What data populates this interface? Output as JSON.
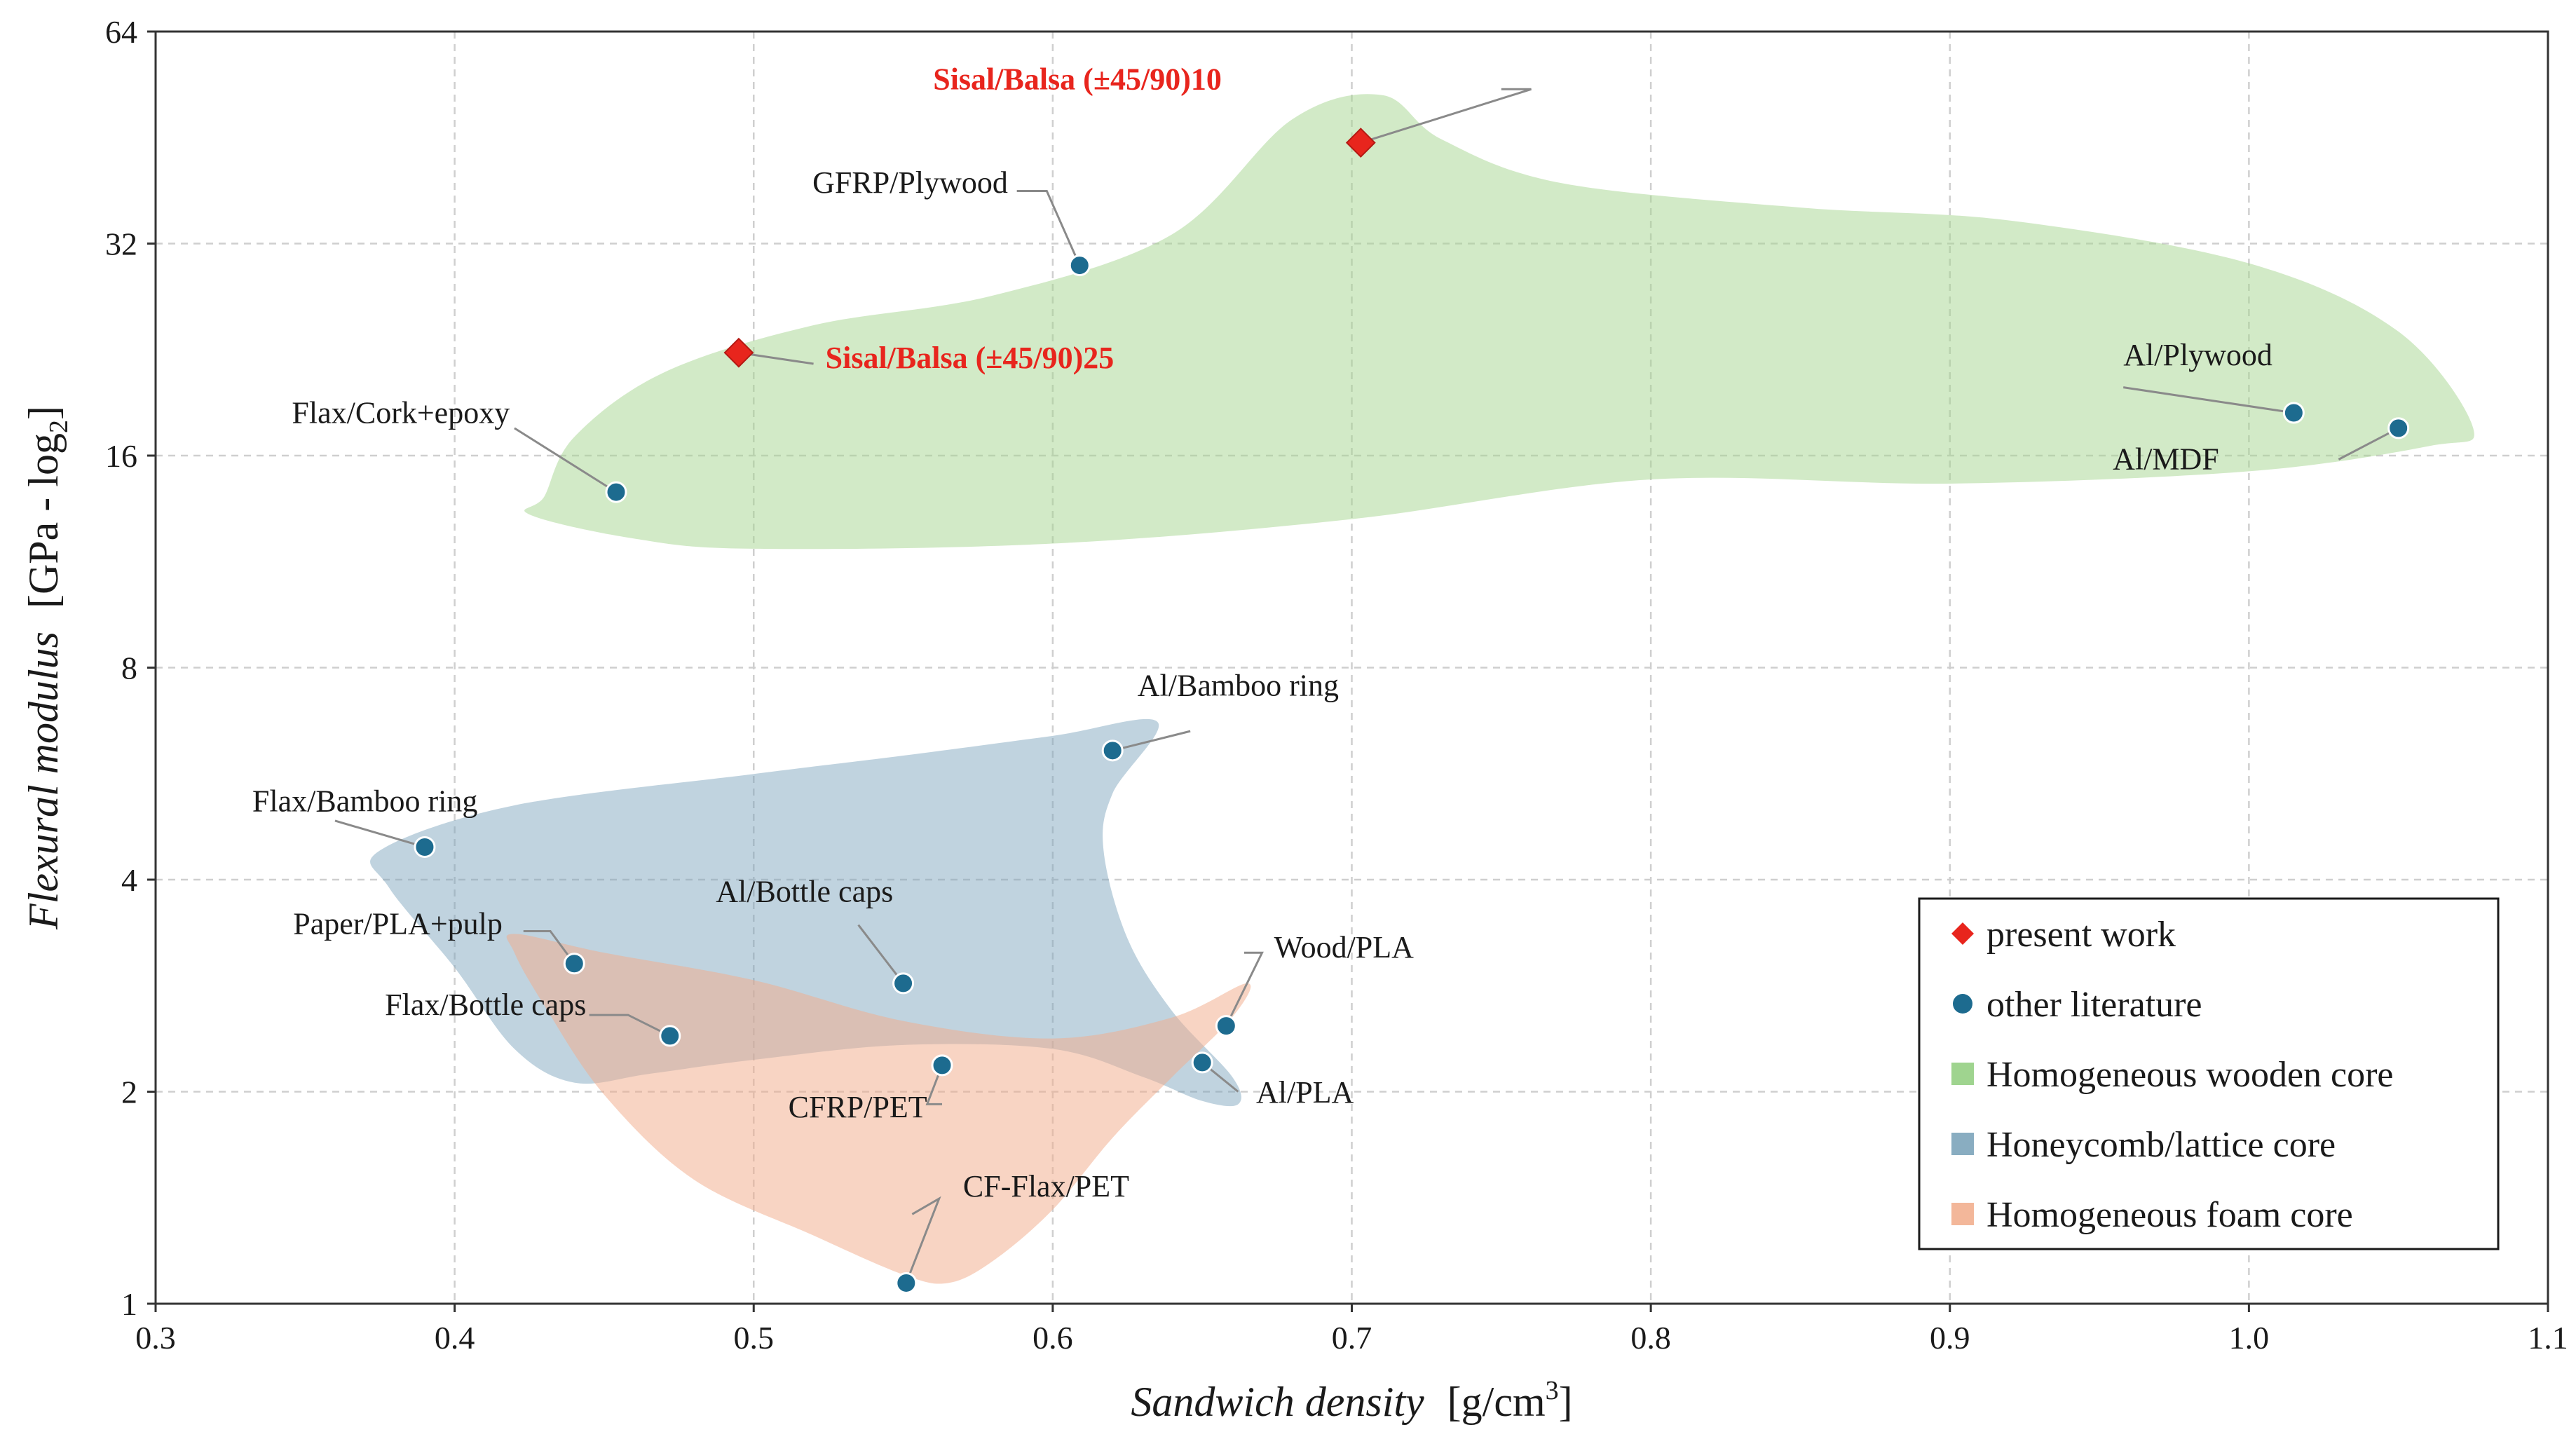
{
  "chart_data": {
    "type": "scatter",
    "title": "",
    "xlabel": "Sandwich density",
    "xlabel_unit": "[g/cm",
    "xlabel_unit_sup": "3",
    "xlabel_unit_close": "]",
    "ylabel": "Flexural modulus",
    "ylabel_unit": "[GPa - log",
    "ylabel_unit_sub": "2",
    "ylabel_unit_close": "]",
    "xlim": [
      0.3,
      1.1
    ],
    "ylim": [
      1,
      64
    ],
    "yscale": "log2",
    "x_ticks": [
      "0.3",
      "0.4",
      "0.5",
      "0.6",
      "0.7",
      "0.8",
      "0.9",
      "1.0",
      "1.1"
    ],
    "y_ticks": [
      "1",
      "2",
      "4",
      "8",
      "16",
      "32",
      "64"
    ],
    "grid": true,
    "legend_position": "bottom-right",
    "legend": [
      {
        "label": "present work",
        "marker": "diamond",
        "color": "#e8251d"
      },
      {
        "label": "other literature",
        "marker": "circle",
        "color": "#1d6b8f"
      },
      {
        "label": "Homogeneous wooden core",
        "marker": "square",
        "color": "#9fd48f"
      },
      {
        "label": "Honeycomb/lattice core",
        "marker": "square",
        "color": "#89adc1"
      },
      {
        "label": "Homogeneous foam core",
        "marker": "square",
        "color": "#f3b79a"
      }
    ],
    "regions": [
      {
        "name": "Homogeneous wooden core",
        "color": "#a6d690",
        "opacity": 0.5,
        "outline": [
          [
            0.43,
            14
          ],
          [
            0.44,
            17
          ],
          [
            0.47,
            21
          ],
          [
            0.52,
            24.5
          ],
          [
            0.58,
            27
          ],
          [
            0.64,
            33
          ],
          [
            0.68,
            48
          ],
          [
            0.71,
            52
          ],
          [
            0.73,
            45
          ],
          [
            0.77,
            39
          ],
          [
            0.85,
            36
          ],
          [
            0.92,
            34.5
          ],
          [
            1.0,
            30
          ],
          [
            1.05,
            24
          ],
          [
            1.075,
            17.5
          ],
          [
            1.06,
            16.5
          ],
          [
            1.0,
            15.2
          ],
          [
            0.9,
            14.6
          ],
          [
            0.8,
            14.8
          ],
          [
            0.7,
            13
          ],
          [
            0.6,
            12
          ],
          [
            0.5,
            11.8
          ],
          [
            0.46,
            12.2
          ],
          [
            0.425,
            13.2
          ]
        ]
      },
      {
        "name": "Honeycomb/lattice core",
        "color": "#7ba3bd",
        "opacity": 0.48,
        "outline": [
          [
            0.375,
            4.4
          ],
          [
            0.42,
            5.1
          ],
          [
            0.5,
            5.65
          ],
          [
            0.55,
            6.0
          ],
          [
            0.6,
            6.4
          ],
          [
            0.635,
            6.7
          ],
          [
            0.62,
            5.3
          ],
          [
            0.617,
            4.4
          ],
          [
            0.625,
            3.3
          ],
          [
            0.64,
            2.6
          ],
          [
            0.66,
            2.1
          ],
          [
            0.662,
            1.92
          ],
          [
            0.65,
            1.94
          ],
          [
            0.63,
            2.1
          ],
          [
            0.6,
            2.3
          ],
          [
            0.55,
            2.33
          ],
          [
            0.5,
            2.22
          ],
          [
            0.465,
            2.12
          ],
          [
            0.44,
            2.06
          ],
          [
            0.42,
            2.3
          ],
          [
            0.4,
            3.0
          ],
          [
            0.378,
            3.9
          ]
        ]
      },
      {
        "name": "Homogeneous foam core",
        "color": "#f1ad8c",
        "opacity": 0.52,
        "outline": [
          [
            0.42,
            3.35
          ],
          [
            0.45,
            3.15
          ],
          [
            0.5,
            2.88
          ],
          [
            0.55,
            2.52
          ],
          [
            0.6,
            2.38
          ],
          [
            0.64,
            2.55
          ],
          [
            0.665,
            2.85
          ],
          [
            0.66,
            2.55
          ],
          [
            0.64,
            2.1
          ],
          [
            0.62,
            1.72
          ],
          [
            0.6,
            1.36
          ],
          [
            0.58,
            1.15
          ],
          [
            0.565,
            1.07
          ],
          [
            0.55,
            1.1
          ],
          [
            0.52,
            1.25
          ],
          [
            0.48,
            1.5
          ],
          [
            0.45,
            1.98
          ],
          [
            0.43,
            2.65
          ],
          [
            0.42,
            3.15
          ]
        ]
      }
    ],
    "points": [
      {
        "label": "Sisal/Balsa (±45/90)10",
        "x": 0.703,
        "y": 44.5,
        "marker": "diamond",
        "group": "present work",
        "label_pos": [
          0.56,
          53
        ],
        "leader": [
          [
            0.75,
            53
          ],
          [
            0.76,
            53
          ]
        ],
        "anchor": "start"
      },
      {
        "label": "Sisal/Balsa (±45/90)25",
        "x": 0.495,
        "y": 22.4,
        "marker": "diamond",
        "group": "present work",
        "label_pos": [
          0.524,
          21.3
        ],
        "leader": [
          [
            0.52,
            21.6
          ]
        ],
        "anchor": "start"
      },
      {
        "label": "GFRP/Plywood",
        "x": 0.609,
        "y": 29.8,
        "marker": "circle",
        "group": "other literature",
        "label_pos": [
          0.585,
          37.8
        ],
        "leader": [
          [
            0.588,
            38
          ],
          [
            0.598,
            38
          ]
        ],
        "anchor": "end"
      },
      {
        "label": "Al/Plywood",
        "x": 1.015,
        "y": 18.4,
        "marker": "circle",
        "group": "other literature",
        "label_pos": [
          0.958,
          21.5
        ],
        "leader": [
          [
            0.958,
            20
          ]
        ],
        "anchor": "start"
      },
      {
        "label": "Al/MDF",
        "x": 1.05,
        "y": 17.5,
        "marker": "circle",
        "group": "other literature",
        "label_pos": [
          0.99,
          15.3
        ],
        "leader": [
          [
            1.03,
            15.8
          ]
        ],
        "anchor": "end"
      },
      {
        "label": "Flax/Cork+epoxy",
        "x": 0.454,
        "y": 14.2,
        "marker": "circle",
        "group": "other literature",
        "label_pos": [
          0.382,
          17.8
        ],
        "leader": [
          [
            0.42,
            17.5
          ]
        ],
        "anchor": "middle"
      },
      {
        "label": "Al/Bamboo ring",
        "x": 0.62,
        "y": 6.1,
        "marker": "circle",
        "group": "other literature",
        "label_pos": [
          0.662,
          7.3
        ],
        "leader": [
          [
            0.646,
            6.5
          ]
        ],
        "anchor": "middle"
      },
      {
        "label": "Flax/Bamboo ring",
        "x": 0.39,
        "y": 4.45,
        "marker": "circle",
        "group": "other literature",
        "label_pos": [
          0.37,
          5.0
        ],
        "leader": [
          [
            0.36,
            4.85
          ]
        ],
        "anchor": "middle"
      },
      {
        "label": "Al/Bottle caps",
        "x": 0.55,
        "y": 2.85,
        "marker": "circle",
        "group": "other literature",
        "label_pos": [
          0.517,
          3.72
        ],
        "leader": [
          [
            0.535,
            3.45
          ]
        ],
        "anchor": "middle"
      },
      {
        "label": "Paper/PLA+pulp",
        "x": 0.44,
        "y": 3.04,
        "marker": "circle",
        "group": "other literature",
        "label_pos": [
          0.416,
          3.35
        ],
        "leader": [
          [
            0.423,
            3.38
          ],
          [
            0.432,
            3.38
          ]
        ],
        "anchor": "end"
      },
      {
        "label": "Flax/Bottle caps",
        "x": 0.472,
        "y": 2.4,
        "marker": "circle",
        "group": "other literature",
        "label_pos": [
          0.444,
          2.57
        ],
        "leader": [
          [
            0.445,
            2.57
          ],
          [
            0.458,
            2.57
          ]
        ],
        "anchor": "end"
      },
      {
        "label": "Wood/PLA",
        "x": 0.658,
        "y": 2.48,
        "marker": "circle",
        "group": "other literature",
        "label_pos": [
          0.674,
          3.1
        ],
        "leader": [
          [
            0.664,
            3.15
          ],
          [
            0.67,
            3.15
          ]
        ],
        "anchor": "start"
      },
      {
        "label": "Al/PLA",
        "x": 0.65,
        "y": 2.2,
        "marker": "circle",
        "group": "other literature",
        "label_pos": [
          0.668,
          1.93
        ],
        "leader": [
          [
            0.662,
            2.0
          ]
        ],
        "anchor": "start"
      },
      {
        "label": "CFRP/PET",
        "x": 0.563,
        "y": 2.18,
        "marker": "circle",
        "group": "other literature",
        "label_pos": [
          0.558,
          1.84
        ],
        "leader": [
          [
            0.563,
            1.92
          ],
          [
            0.558,
            1.92
          ]
        ],
        "anchor": "end"
      },
      {
        "label": "CF-Flax/PET",
        "x": 0.551,
        "y": 1.07,
        "marker": "circle",
        "group": "other literature",
        "label_pos": [
          0.57,
          1.42
        ],
        "leader": [
          [
            0.553,
            1.34
          ],
          [
            0.562,
            1.41
          ]
        ],
        "anchor": "start"
      }
    ]
  },
  "colors": {
    "present_work": "#e8251d",
    "other_literature_fill": "#1d6b8f",
    "other_literature_dark": "#1f5f5a"
  }
}
